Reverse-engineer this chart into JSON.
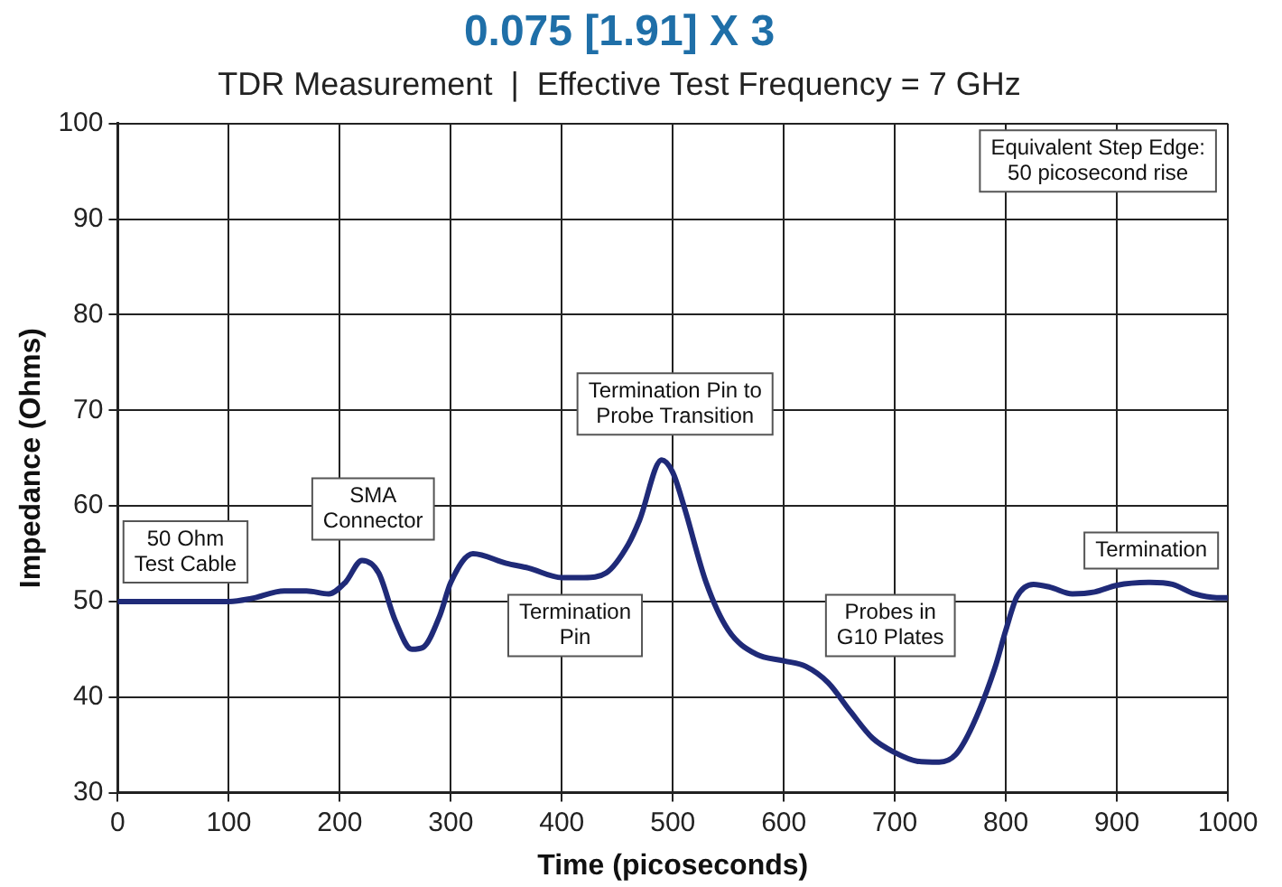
{
  "chart_data": {
    "type": "line",
    "title": "0.075 [1.91] X 3",
    "subtitle": "TDR Measurement  |  Effective Test Frequency = 7 GHz",
    "xlabel": "Time (picoseconds)",
    "ylabel": "Impedance (Ohms)",
    "x": [
      0,
      100,
      120,
      150,
      170,
      190,
      205,
      220,
      235,
      250,
      265,
      275,
      290,
      300,
      320,
      350,
      370,
      400,
      420,
      440,
      460,
      470,
      490,
      500,
      510,
      530,
      550,
      575,
      600,
      620,
      640,
      660,
      680,
      700,
      720,
      740,
      755,
      770,
      790,
      800,
      810,
      825,
      840,
      860,
      880,
      900,
      930,
      950,
      970,
      990,
      1000
    ],
    "series": [
      {
        "color": "#1f2a78",
        "values": [
          50,
          50,
          50.3,
          51.1,
          51.1,
          50.8,
          52,
          54.3,
          53,
          48,
          45,
          45.2,
          48.5,
          52,
          55,
          54,
          53.5,
          52.5,
          52.5,
          53,
          56,
          58.5,
          64.8,
          63.5,
          60,
          52,
          47,
          44.5,
          43.8,
          43.2,
          41.5,
          38.5,
          35.7,
          34.2,
          33.3,
          33.2,
          34,
          37,
          43,
          47,
          50.5,
          51.8,
          51.5,
          50.8,
          51,
          51.7,
          52,
          51.8,
          50.8,
          50.4,
          50.4
        ]
      }
    ],
    "xlim": [
      0,
      1000
    ],
    "xticks": [
      0,
      100,
      200,
      300,
      400,
      500,
      600,
      700,
      800,
      900,
      1000
    ],
    "ylim": [
      30,
      100
    ],
    "yticks": [
      30,
      40,
      50,
      60,
      70,
      80,
      90,
      100
    ],
    "grid": true,
    "legend": false,
    "marker": "none",
    "line_style": "solid",
    "annotations": [
      "Equivalent Step Edge:\n50 picosecond rise",
      "50 Ohm\nTest Cable",
      "SMA\nConnector",
      "Termination Pin to\nProbe Transition",
      "Termination\nPin",
      "Probes in\nG10 Plates",
      "Termination"
    ]
  }
}
